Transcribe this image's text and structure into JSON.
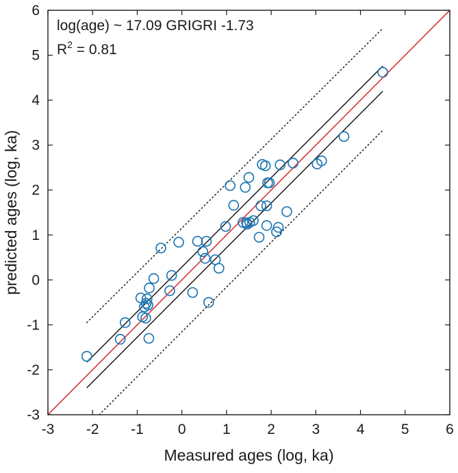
{
  "chart_data": {
    "type": "scatter",
    "title": "",
    "xlabel": "Measured ages (log, ka)",
    "ylabel": "predicted ages (log, ka)",
    "xlim": [
      -3,
      6
    ],
    "ylim": [
      -3,
      6
    ],
    "xticks": [
      "-3",
      "-2",
      "-1",
      "0",
      "1",
      "2",
      "3",
      "4",
      "5",
      "6"
    ],
    "yticks": [
      "-3",
      "-2",
      "-1",
      "0",
      "1",
      "2",
      "3",
      "4",
      "5",
      "6"
    ],
    "grid": false,
    "annotations": {
      "equation": "log(age) ~ 17.09 GRIGRI -1.73",
      "r2_prefix": "R",
      "r2_sup": "2",
      "r2_value": " = 0.81"
    },
    "series": [
      {
        "kind": "scatter",
        "color": "#1f77b4",
        "x": [
          -2.13,
          -1.38,
          -1.27,
          -0.92,
          -0.88,
          -0.84,
          -0.81,
          -0.8,
          -0.78,
          -0.76,
          -0.74,
          -0.73,
          -0.63,
          -0.47,
          -0.27,
          -0.23,
          -0.07,
          0.24,
          0.35,
          0.47,
          0.52,
          0.55,
          0.6,
          0.75,
          0.83,
          0.98,
          1.08,
          1.16,
          1.37,
          1.42,
          1.45,
          1.46,
          1.5,
          1.52,
          1.6,
          1.73,
          1.77,
          1.8,
          1.87,
          1.9,
          1.9,
          1.92,
          1.96,
          2.12,
          2.16,
          2.2,
          2.35,
          2.49,
          3.03,
          3.13,
          3.63,
          4.5
        ],
        "y": [
          -1.7,
          -1.32,
          -0.95,
          -0.4,
          -0.82,
          -0.6,
          -0.85,
          -0.52,
          -0.42,
          -0.56,
          -1.3,
          -0.18,
          0.03,
          0.71,
          -0.24,
          0.1,
          0.84,
          -0.28,
          0.86,
          0.63,
          0.48,
          0.86,
          -0.5,
          0.45,
          0.26,
          1.19,
          2.1,
          1.66,
          1.28,
          2.06,
          1.27,
          1.24,
          2.28,
          1.28,
          1.32,
          0.95,
          1.65,
          2.57,
          2.54,
          1.21,
          1.65,
          2.16,
          2.16,
          1.07,
          1.17,
          2.56,
          1.52,
          2.6,
          2.58,
          2.65,
          3.19,
          4.62
        ]
      },
      {
        "kind": "line",
        "style": "solid",
        "color": "#d62728",
        "x": [
          -3,
          6
        ],
        "y": [
          -3,
          6
        ]
      },
      {
        "kind": "line",
        "style": "solid",
        "color": "#1a1a1a",
        "x": [
          -2.13,
          4.5
        ],
        "y": [
          -1.83,
          4.76
        ]
      },
      {
        "kind": "line",
        "style": "solid",
        "color": "#1a1a1a",
        "x": [
          -2.13,
          4.5
        ],
        "y": [
          -2.4,
          4.2
        ]
      },
      {
        "kind": "line",
        "style": "dotted",
        "color": "#1a1a1a",
        "x": [
          -2.13,
          4.5
        ],
        "y": [
          -0.95,
          5.6
        ]
      },
      {
        "kind": "line",
        "style": "dotted",
        "color": "#1a1a1a",
        "x": [
          -1.85,
          4.5
        ],
        "y": [
          -3,
          3.33
        ]
      }
    ]
  }
}
